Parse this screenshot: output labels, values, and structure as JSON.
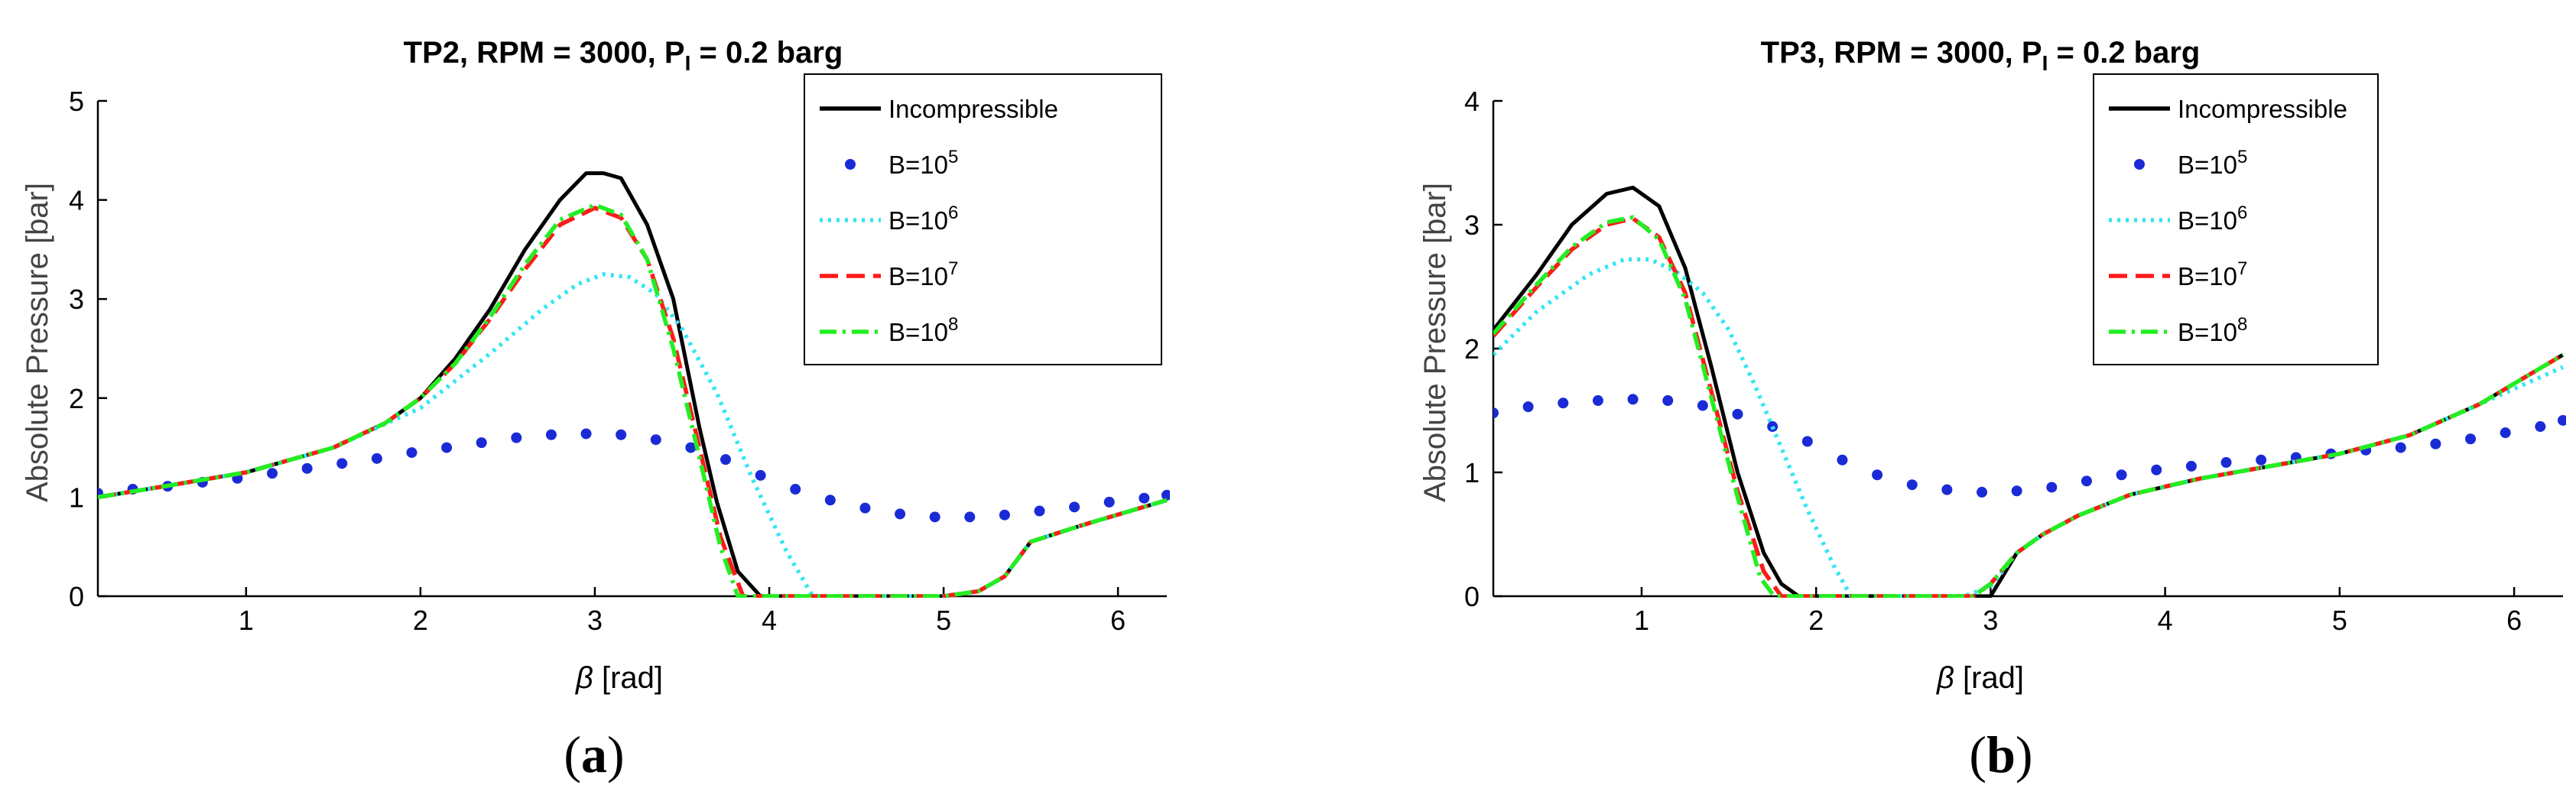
{
  "chart_data": [
    {
      "type": "line",
      "title_main": "TP2, RPM = 3000, P",
      "title_sub": "I",
      "title_tail": " = 0.2 barg",
      "xlabel_symbol": "β",
      "xlabel_unit": " [rad]",
      "ylabel": "Absolute Pressure [bar]",
      "xlim": [
        0.15,
        6.28
      ],
      "ylim": [
        0,
        5
      ],
      "xticks": [
        1,
        2,
        3,
        4,
        5,
        6
      ],
      "yticks": [
        0,
        1,
        2,
        3,
        4,
        5
      ],
      "caption_letter": "a",
      "legend": {
        "position": "top-right",
        "entries": [
          {
            "label": "Incompressible",
            "sup": ""
          },
          {
            "label": "B=10",
            "sup": "5"
          },
          {
            "label": "B=10",
            "sup": "6"
          },
          {
            "label": "B=10",
            "sup": "7"
          },
          {
            "label": "B=10",
            "sup": "8"
          }
        ]
      },
      "series": [
        {
          "name": "Incompressible",
          "color": "#000000",
          "style": "solid",
          "x": [
            0.15,
            0.5,
            1.0,
            1.5,
            1.8,
            2.0,
            2.2,
            2.4,
            2.6,
            2.8,
            2.95,
            3.05,
            3.15,
            3.3,
            3.45,
            3.6,
            3.7,
            3.82,
            3.95,
            5.0,
            5.2,
            5.35,
            5.5,
            5.8,
            6.28
          ],
          "y": [
            1.0,
            1.1,
            1.25,
            1.5,
            1.75,
            2.0,
            2.4,
            2.9,
            3.5,
            4.0,
            4.27,
            4.27,
            4.22,
            3.75,
            3.0,
            1.7,
            0.95,
            0.25,
            0,
            0,
            0.05,
            0.2,
            0.55,
            0.72,
            0.97
          ]
        },
        {
          "name": "B=10^5",
          "color": "#1a2bd6",
          "style": "dots",
          "x": [
            0.15,
            0.35,
            0.55,
            0.75,
            0.95,
            1.15,
            1.35,
            1.55,
            1.75,
            1.95,
            2.15,
            2.35,
            2.55,
            2.75,
            2.95,
            3.15,
            3.35,
            3.55,
            3.75,
            3.95,
            4.15,
            4.35,
            4.55,
            4.75,
            4.95,
            5.15,
            5.35,
            5.55,
            5.75,
            5.95,
            6.15,
            6.28
          ],
          "y": [
            1.04,
            1.08,
            1.11,
            1.15,
            1.19,
            1.24,
            1.29,
            1.34,
            1.39,
            1.45,
            1.5,
            1.55,
            1.6,
            1.63,
            1.64,
            1.63,
            1.58,
            1.5,
            1.38,
            1.22,
            1.08,
            0.97,
            0.89,
            0.83,
            0.8,
            0.8,
            0.82,
            0.86,
            0.9,
            0.95,
            0.99,
            1.02
          ]
        },
        {
          "name": "B=10^6",
          "color": "#33e6f2",
          "style": "dotted",
          "x": [
            0.15,
            0.5,
            1.0,
            1.5,
            2.0,
            2.4,
            2.7,
            2.9,
            3.05,
            3.2,
            3.35,
            3.5,
            3.7,
            3.9,
            4.1,
            4.25,
            5.0,
            5.2,
            5.35,
            5.5,
            5.8,
            6.28
          ],
          "y": [
            1.0,
            1.1,
            1.25,
            1.5,
            1.9,
            2.45,
            2.9,
            3.15,
            3.25,
            3.22,
            3.05,
            2.7,
            2.05,
            1.2,
            0.45,
            0,
            0,
            0.05,
            0.2,
            0.55,
            0.72,
            0.97
          ]
        },
        {
          "name": "B=10^7",
          "color": "#ff1a1a",
          "style": "dashed",
          "x": [
            0.15,
            0.5,
            1.0,
            1.5,
            1.8,
            2.0,
            2.2,
            2.4,
            2.6,
            2.8,
            3.0,
            3.15,
            3.3,
            3.45,
            3.6,
            3.72,
            3.85,
            5.0,
            5.2,
            5.35,
            5.5,
            5.8,
            6.28
          ],
          "y": [
            1.0,
            1.1,
            1.25,
            1.5,
            1.75,
            2.0,
            2.35,
            2.8,
            3.3,
            3.75,
            3.92,
            3.82,
            3.4,
            2.6,
            1.5,
            0.6,
            0,
            0,
            0.05,
            0.2,
            0.55,
            0.72,
            0.97
          ]
        },
        {
          "name": "B=10^8",
          "color": "#22ee22",
          "style": "dashdot",
          "x": [
            0.15,
            0.5,
            1.0,
            1.5,
            1.8,
            2.0,
            2.2,
            2.4,
            2.6,
            2.8,
            3.0,
            3.15,
            3.3,
            3.45,
            3.6,
            3.72,
            3.82,
            5.0,
            5.2,
            5.35,
            5.5,
            5.8,
            6.28
          ],
          "y": [
            1.0,
            1.1,
            1.25,
            1.5,
            1.75,
            2.0,
            2.35,
            2.82,
            3.35,
            3.8,
            3.95,
            3.85,
            3.4,
            2.5,
            1.4,
            0.5,
            0,
            0,
            0.05,
            0.2,
            0.55,
            0.72,
            0.97
          ]
        }
      ]
    },
    {
      "type": "line",
      "title_main": "TP3, RPM = 3000, P",
      "title_sub": "I",
      "title_tail": " = 0.2 barg",
      "xlabel_symbol": "β",
      "xlabel_unit": " [rad]",
      "ylabel": "Absolute Pressure [bar]",
      "xlim": [
        0.15,
        6.28
      ],
      "ylim": [
        0,
        4
      ],
      "xticks": [
        1,
        2,
        3,
        4,
        5,
        6
      ],
      "yticks": [
        0,
        1,
        2,
        3,
        4
      ],
      "caption_letter": "b",
      "legend": {
        "position": "top-right",
        "entries": [
          {
            "label": "Incompressible",
            "sup": ""
          },
          {
            "label": "B=10",
            "sup": "5"
          },
          {
            "label": "B=10",
            "sup": "6"
          },
          {
            "label": "B=10",
            "sup": "7"
          },
          {
            "label": "B=10",
            "sup": "8"
          }
        ]
      },
      "series": [
        {
          "name": "Incompressible",
          "color": "#000000",
          "style": "solid",
          "x": [
            0.15,
            0.4,
            0.6,
            0.8,
            0.95,
            1.1,
            1.25,
            1.4,
            1.55,
            1.7,
            1.8,
            1.9,
            3.0,
            3.15,
            3.3,
            3.5,
            3.8,
            4.2,
            4.6,
            5.0,
            5.4,
            5.8,
            6.28
          ],
          "y": [
            2.15,
            2.6,
            3.0,
            3.25,
            3.3,
            3.15,
            2.65,
            1.85,
            1.0,
            0.35,
            0.1,
            0,
            0,
            0.35,
            0.5,
            0.65,
            0.82,
            0.95,
            1.05,
            1.15,
            1.3,
            1.55,
            1.95
          ]
        },
        {
          "name": "B=10^5",
          "color": "#1a2bd6",
          "style": "dots",
          "x": [
            0.15,
            0.35,
            0.55,
            0.75,
            0.95,
            1.15,
            1.35,
            1.55,
            1.75,
            1.95,
            2.15,
            2.35,
            2.55,
            2.75,
            2.95,
            3.15,
            3.35,
            3.55,
            3.75,
            3.95,
            4.15,
            4.35,
            4.55,
            4.75,
            4.95,
            5.15,
            5.35,
            5.55,
            5.75,
            5.95,
            6.15,
            6.28
          ],
          "y": [
            1.48,
            1.53,
            1.56,
            1.58,
            1.59,
            1.58,
            1.54,
            1.47,
            1.37,
            1.25,
            1.1,
            0.98,
            0.9,
            0.86,
            0.84,
            0.85,
            0.88,
            0.93,
            0.98,
            1.02,
            1.05,
            1.08,
            1.1,
            1.12,
            1.15,
            1.18,
            1.2,
            1.23,
            1.27,
            1.32,
            1.37,
            1.42
          ]
        },
        {
          "name": "B=10^6",
          "color": "#33e6f2",
          "style": "dotted",
          "x": [
            0.15,
            0.4,
            0.7,
            0.9,
            1.05,
            1.2,
            1.35,
            1.5,
            1.65,
            1.8,
            1.95,
            2.1,
            2.2,
            2.85,
            3.0,
            3.15,
            3.3,
            3.5,
            3.8,
            4.2,
            4.6,
            5.0,
            5.4,
            5.8,
            6.28
          ],
          "y": [
            1.95,
            2.3,
            2.6,
            2.72,
            2.72,
            2.62,
            2.45,
            2.15,
            1.7,
            1.2,
            0.7,
            0.25,
            0,
            0,
            0.08,
            0.35,
            0.5,
            0.65,
            0.82,
            0.95,
            1.05,
            1.15,
            1.3,
            1.55,
            1.85
          ]
        },
        {
          "name": "B=10^7",
          "color": "#ff1a1a",
          "style": "dashed",
          "x": [
            0.15,
            0.4,
            0.6,
            0.8,
            0.95,
            1.1,
            1.25,
            1.4,
            1.55,
            1.7,
            1.8,
            2.9,
            3.0,
            3.15,
            3.3,
            3.5,
            3.8,
            4.2,
            4.6,
            5.0,
            5.4,
            5.8,
            6.28
          ],
          "y": [
            2.1,
            2.5,
            2.8,
            3.0,
            3.05,
            2.9,
            2.45,
            1.65,
            0.85,
            0.2,
            0,
            0,
            0.1,
            0.35,
            0.5,
            0.65,
            0.82,
            0.95,
            1.05,
            1.15,
            1.3,
            1.55,
            1.95
          ]
        },
        {
          "name": "B=10^8",
          "color": "#22ee22",
          "style": "dashdot",
          "x": [
            0.15,
            0.4,
            0.6,
            0.8,
            0.95,
            1.1,
            1.25,
            1.4,
            1.55,
            1.68,
            1.76,
            2.9,
            3.0,
            3.15,
            3.3,
            3.5,
            3.8,
            4.2,
            4.6,
            5.0,
            5.4,
            5.8,
            6.28
          ],
          "y": [
            2.12,
            2.52,
            2.82,
            3.02,
            3.06,
            2.88,
            2.4,
            1.6,
            0.8,
            0.15,
            0,
            0,
            0.1,
            0.35,
            0.5,
            0.65,
            0.82,
            0.95,
            1.05,
            1.15,
            1.3,
            1.55,
            1.95
          ]
        }
      ]
    }
  ]
}
